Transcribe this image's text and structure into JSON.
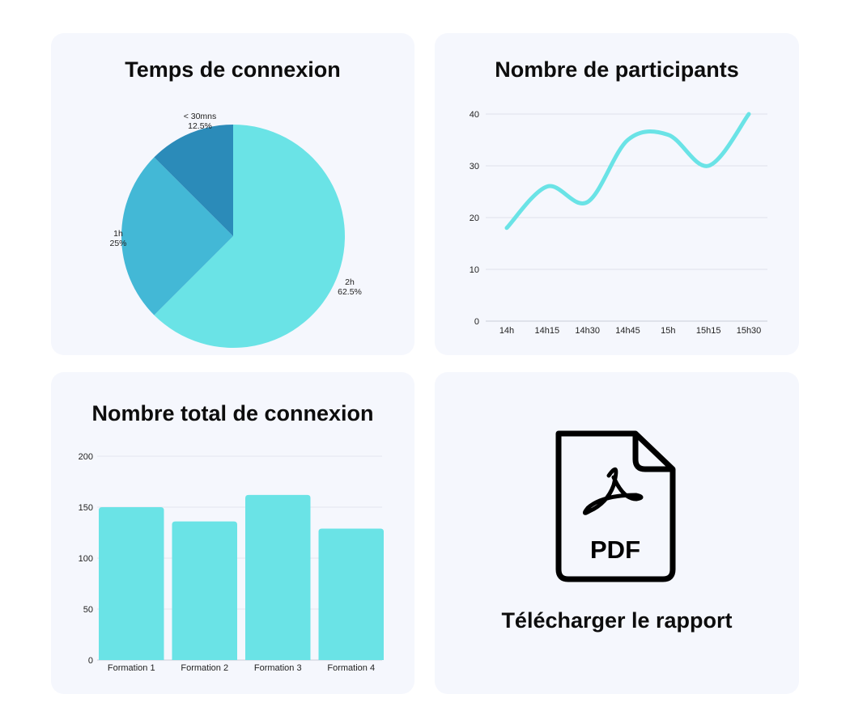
{
  "chart_data": [
    {
      "type": "pie",
      "title": "Temps de connexion",
      "slices": [
        {
          "label": "2h",
          "value": 62.5,
          "pct_label": "62.5%",
          "color": "#6ae3e6"
        },
        {
          "label": "1h",
          "value": 25,
          "pct_label": "25%",
          "color": "#43b8d6"
        },
        {
          "label": "< 30mns",
          "value": 12.5,
          "pct_label": "12.5%",
          "color": "#2b8bb9"
        }
      ]
    },
    {
      "type": "line",
      "title": "Nombre de participants",
      "categories": [
        "14h",
        "14h15",
        "14h30",
        "14h45",
        "15h",
        "15h15",
        "15h30"
      ],
      "values": [
        18,
        26,
        23,
        35,
        36,
        30,
        40
      ],
      "yticks": [
        "0",
        "10",
        "20",
        "30",
        "40"
      ],
      "ylim": [
        0,
        40
      ],
      "color": "#6ae3e6",
      "grid": true
    },
    {
      "type": "bar",
      "title": "Nombre total de connexion",
      "categories": [
        "Formation 1",
        "Formation 2",
        "Formation 3",
        "Formation 4"
      ],
      "values": [
        150,
        136,
        162,
        129
      ],
      "yticks": [
        "0",
        "50",
        "100",
        "150",
        "200"
      ],
      "ylim": [
        0,
        200
      ],
      "color": "#6ae3e6",
      "grid": true
    }
  ],
  "download": {
    "icon": "pdf-file-icon",
    "icon_text": "PDF",
    "label": "Télécharger le rapport"
  }
}
